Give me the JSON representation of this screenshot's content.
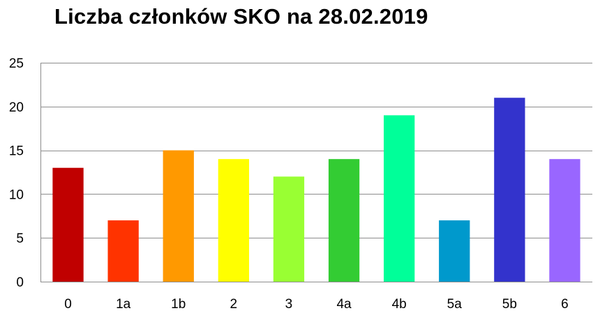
{
  "chart_data": {
    "type": "bar",
    "title": "Liczba członków SKO na 28.02.2019",
    "xlabel": "",
    "ylabel": "",
    "categories": [
      "0",
      "1a",
      "1b",
      "2",
      "3",
      "4a",
      "4b",
      "5a",
      "5b",
      "6"
    ],
    "values": [
      13,
      7,
      15,
      14,
      12,
      14,
      19,
      7,
      21,
      14
    ],
    "colors": [
      "#c00000",
      "#ff3300",
      "#ff9900",
      "#ffff00",
      "#99ff33",
      "#33cc33",
      "#00ff99",
      "#0099cc",
      "#3333cc",
      "#9966ff"
    ],
    "ylim": [
      0,
      25
    ],
    "yticks": [
      0,
      5,
      10,
      15,
      20,
      25
    ],
    "grid": true,
    "legend": "none"
  }
}
